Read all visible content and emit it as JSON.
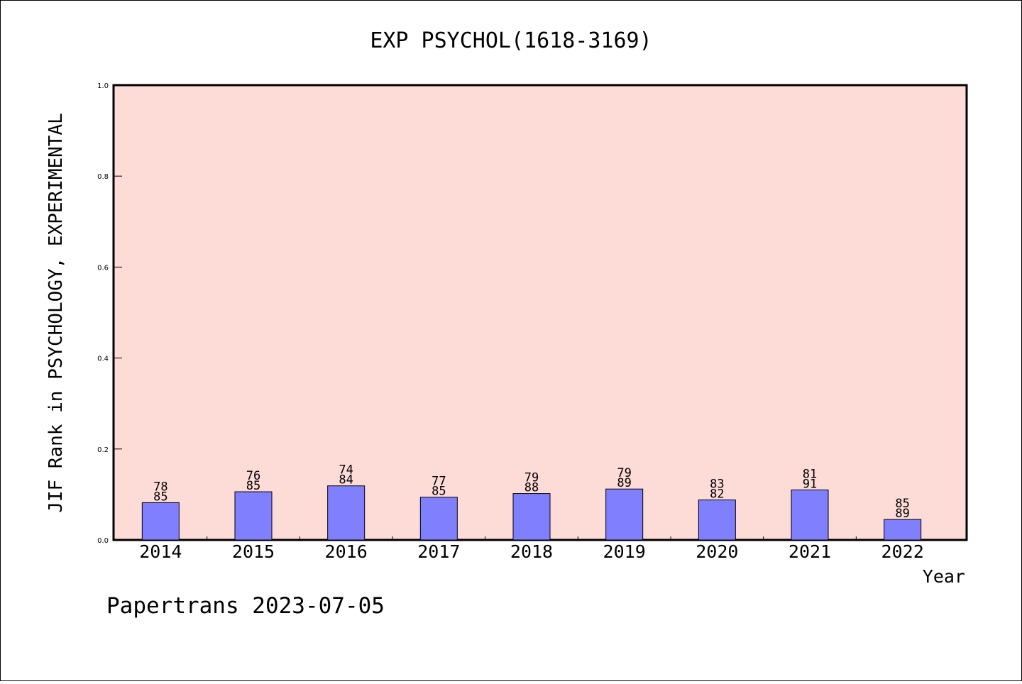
{
  "chart_data": {
    "type": "bar",
    "title": "EXP PSYCHOL(1618-3169)",
    "xlabel": "Year",
    "ylabel": "JIF Rank in PSYCHOLOGY, EXPERIMENTAL",
    "ylim": [
      0,
      1.0
    ],
    "yticks": [
      "0.0",
      "0.2",
      "0.4",
      "0.6",
      "0.8",
      "1.0"
    ],
    "categories": [
      "2014",
      "2015",
      "2016",
      "2017",
      "2018",
      "2019",
      "2020",
      "2021",
      "2022"
    ],
    "values": [
      0.082,
      0.106,
      0.119,
      0.094,
      0.102,
      0.112,
      0.088,
      0.11,
      0.045
    ],
    "labels_top": [
      "78",
      "76",
      "74",
      "77",
      "79",
      "79",
      "83",
      "81",
      "85"
    ],
    "labels_bottom": [
      "85",
      "85",
      "84",
      "85",
      "88",
      "89",
      "82",
      "91",
      "89"
    ],
    "grid": false,
    "colors": {
      "plot_background": "#fddbd7",
      "bar_fill": "#8080ff",
      "bar_edge": "#000000"
    }
  },
  "footer": "Papertrans 2023-07-05"
}
